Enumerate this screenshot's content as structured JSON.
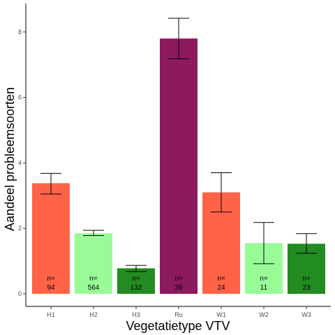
{
  "chart_data": {
    "type": "bar",
    "xlabel": "Vegetatietype VTV",
    "ylabel": "Aandeel probleemsoorten",
    "ylim": [
      0,
      8.3
    ],
    "yticks": [
      0,
      2,
      4,
      6,
      8
    ],
    "grid": false,
    "categories": [
      "H1",
      "H2",
      "H3",
      "Ru",
      "W1",
      "W2",
      "W3"
    ],
    "values": [
      3.38,
      1.85,
      0.78,
      7.8,
      3.1,
      1.55,
      1.53
    ],
    "error_low": [
      3.05,
      1.78,
      0.68,
      7.18,
      2.5,
      0.92,
      1.24
    ],
    "error_high": [
      3.68,
      1.94,
      0.87,
      8.42,
      3.7,
      2.18,
      1.84
    ],
    "n_prefix": "n=",
    "n_values": [
      "94",
      "564",
      "132",
      "36",
      "24",
      "11",
      "23"
    ],
    "colors": [
      "#ff6347",
      "#98fb98",
      "#228b22",
      "#8b1a5e",
      "#ff6347",
      "#98fb98",
      "#228b22"
    ]
  }
}
